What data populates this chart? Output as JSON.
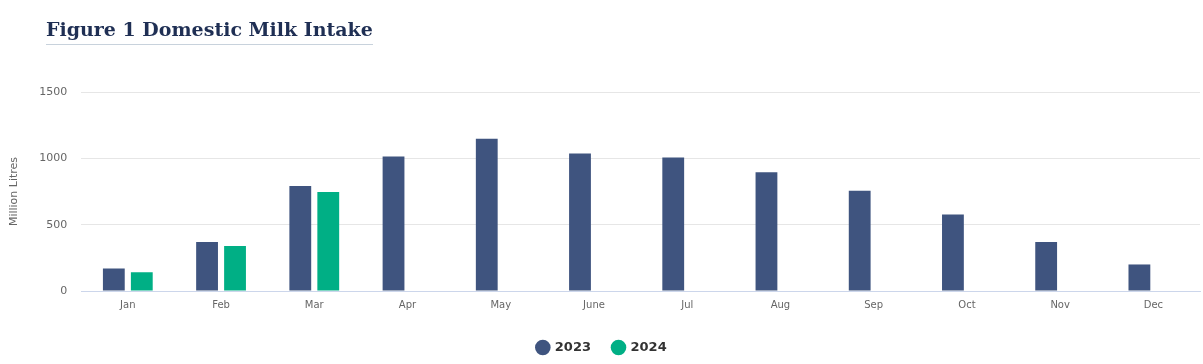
{
  "chart_data": {
    "type": "bar",
    "title": "Figure 1 Domestic Milk Intake",
    "ylabel": "Million Litres",
    "categories": [
      "Jan",
      "Feb",
      "Mar",
      "Apr",
      "May",
      "June",
      "Jul",
      "Aug",
      "Sep",
      "Oct",
      "Nov",
      "Dec"
    ],
    "series": [
      {
        "name": "2023",
        "color": "#3f547f",
        "values": [
          170,
          370,
          792,
          1014,
          1147,
          1036,
          1006,
          895,
          755,
          577,
          370,
          200
        ]
      },
      {
        "name": "2024",
        "color": "#00af85",
        "values": [
          141,
          340,
          747,
          null,
          null,
          null,
          null,
          null,
          null,
          null,
          null,
          null
        ]
      }
    ],
    "ylim": [
      0,
      1500
    ],
    "yticks": [
      0,
      500,
      1000,
      1500
    ],
    "grid": "y",
    "legend": "bottom"
  }
}
